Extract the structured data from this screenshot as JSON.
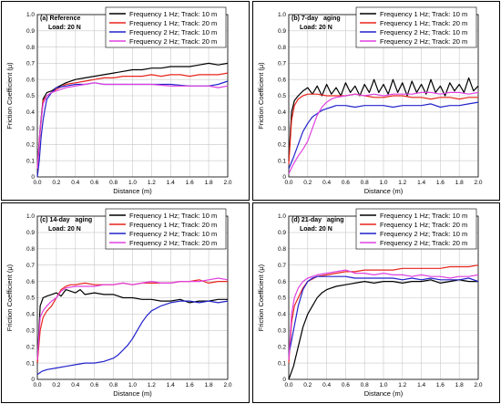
{
  "chart_data": [
    {
      "type": "line",
      "panel_label": "(a) Reference",
      "load_label": "Load: 20 N",
      "xlabel": "Distance (m)",
      "ylabel": "Friction Coefficient (μ)",
      "xlim": [
        0,
        2.0
      ],
      "ylim": [
        0,
        1.0
      ],
      "xticks": [
        "0.0",
        "0.2",
        "0.4",
        "0.6",
        "0.8",
        "1.0",
        "1.2",
        "1.4",
        "1.6",
        "1.8",
        "2.0"
      ],
      "yticks": [
        "0",
        "0.1",
        "0.2",
        "0.3",
        "0.4",
        "0.5",
        "0.6",
        "0.7",
        "0.8",
        "0.9",
        "1.0"
      ],
      "grid": true,
      "legend_position": "top-right",
      "series": [
        {
          "name": "Frequency 1 Hz; Track: 10 m",
          "color": "#000000",
          "x": [
            0,
            0.03,
            0.06,
            0.1,
            0.15,
            0.2,
            0.3,
            0.4,
            0.5,
            0.6,
            0.7,
            0.8,
            0.9,
            1.0,
            1.1,
            1.2,
            1.3,
            1.4,
            1.5,
            1.6,
            1.7,
            1.8,
            1.9,
            2.0
          ],
          "y": [
            0.05,
            0.3,
            0.48,
            0.52,
            0.53,
            0.55,
            0.58,
            0.6,
            0.61,
            0.62,
            0.63,
            0.64,
            0.65,
            0.66,
            0.66,
            0.67,
            0.67,
            0.68,
            0.68,
            0.68,
            0.69,
            0.7,
            0.69,
            0.7
          ]
        },
        {
          "name": "Frequency 1 Hz; Track: 20 m",
          "color": "#e8251c",
          "x": [
            0,
            0.03,
            0.06,
            0.1,
            0.15,
            0.2,
            0.3,
            0.4,
            0.5,
            0.6,
            0.7,
            0.8,
            0.9,
            1.0,
            1.1,
            1.2,
            1.3,
            1.4,
            1.5,
            1.6,
            1.7,
            1.8,
            1.9,
            2.0
          ],
          "y": [
            0.05,
            0.28,
            0.47,
            0.5,
            0.52,
            0.54,
            0.57,
            0.58,
            0.59,
            0.6,
            0.61,
            0.61,
            0.62,
            0.62,
            0.62,
            0.63,
            0.62,
            0.63,
            0.63,
            0.62,
            0.63,
            0.63,
            0.63,
            0.64
          ]
        },
        {
          "name": "Frequency 2 Hz; Track: 10 m",
          "color": "#2222cc",
          "x": [
            0,
            0.02,
            0.04,
            0.06,
            0.08,
            0.1,
            0.15,
            0.2,
            0.3,
            0.4,
            0.5,
            0.6,
            0.7,
            0.8,
            0.9,
            1.0,
            1.2,
            1.4,
            1.6,
            1.8,
            1.9,
            2.0
          ],
          "y": [
            0.0,
            0.1,
            0.25,
            0.35,
            0.42,
            0.48,
            0.52,
            0.55,
            0.56,
            0.57,
            0.57,
            0.58,
            0.57,
            0.57,
            0.57,
            0.57,
            0.57,
            0.57,
            0.56,
            0.56,
            0.57,
            0.59
          ]
        },
        {
          "name": "Frequency 2 Hz; Track: 20 m",
          "color": "#e040e0",
          "x": [
            0,
            0.03,
            0.06,
            0.1,
            0.15,
            0.2,
            0.3,
            0.4,
            0.5,
            0.6,
            0.7,
            0.8,
            0.9,
            1.0,
            1.2,
            1.4,
            1.6,
            1.8,
            1.9,
            2.0
          ],
          "y": [
            0.05,
            0.3,
            0.45,
            0.5,
            0.52,
            0.53,
            0.55,
            0.56,
            0.57,
            0.58,
            0.57,
            0.57,
            0.57,
            0.57,
            0.57,
            0.56,
            0.56,
            0.56,
            0.55,
            0.56
          ]
        }
      ]
    },
    {
      "type": "line",
      "panel_label": "(b) 7-day   aging",
      "load_label": "Load: 20 N",
      "xlabel": "Distance (m)",
      "ylabel": "Friction Coefficient (μ)",
      "xlim": [
        0,
        2.0
      ],
      "ylim": [
        0,
        1.0
      ],
      "xticks": [
        "0.0",
        "0.2",
        "0.4",
        "0.6",
        "0.8",
        "1.0",
        "1.2",
        "1.4",
        "1.6",
        "1.8",
        "2.0"
      ],
      "yticks": [
        "0",
        "0.1",
        "0.2",
        "0.3",
        "0.4",
        "0.5",
        "0.6",
        "0.7",
        "0.8",
        "0.9",
        "1.0"
      ],
      "grid": true,
      "legend_position": "top-right",
      "series": [
        {
          "name": "Frequency 1 Hz; Track: 10 m",
          "color": "#000000",
          "x": [
            0,
            0.03,
            0.06,
            0.1,
            0.15,
            0.2,
            0.25,
            0.3,
            0.35,
            0.4,
            0.45,
            0.5,
            0.55,
            0.6,
            0.65,
            0.7,
            0.75,
            0.8,
            0.85,
            0.9,
            0.95,
            1.0,
            1.05,
            1.1,
            1.15,
            1.2,
            1.25,
            1.3,
            1.35,
            1.4,
            1.45,
            1.5,
            1.55,
            1.6,
            1.65,
            1.7,
            1.75,
            1.8,
            1.85,
            1.9,
            1.95,
            2.0
          ],
          "y": [
            0.1,
            0.4,
            0.47,
            0.5,
            0.53,
            0.55,
            0.51,
            0.56,
            0.5,
            0.57,
            0.51,
            0.55,
            0.5,
            0.58,
            0.52,
            0.56,
            0.5,
            0.57,
            0.52,
            0.6,
            0.52,
            0.57,
            0.51,
            0.6,
            0.52,
            0.58,
            0.5,
            0.59,
            0.52,
            0.57,
            0.51,
            0.6,
            0.52,
            0.56,
            0.5,
            0.58,
            0.53,
            0.57,
            0.52,
            0.61,
            0.53,
            0.56
          ]
        },
        {
          "name": "Frequency 1 Hz; Track: 20 m",
          "color": "#e8251c",
          "x": [
            0,
            0.03,
            0.06,
            0.1,
            0.15,
            0.2,
            0.3,
            0.4,
            0.5,
            0.6,
            0.7,
            0.8,
            0.9,
            1.0,
            1.1,
            1.2,
            1.3,
            1.4,
            1.5,
            1.6,
            1.7,
            1.8,
            1.9,
            2.0
          ],
          "y": [
            0.08,
            0.35,
            0.44,
            0.48,
            0.5,
            0.51,
            0.51,
            0.5,
            0.5,
            0.5,
            0.51,
            0.5,
            0.49,
            0.49,
            0.5,
            0.5,
            0.49,
            0.49,
            0.48,
            0.49,
            0.49,
            0.48,
            0.49,
            0.49
          ]
        },
        {
          "name": "Frequency 2 Hz; Track: 10 m",
          "color": "#2222cc",
          "x": [
            0,
            0.05,
            0.1,
            0.15,
            0.2,
            0.25,
            0.3,
            0.35,
            0.4,
            0.45,
            0.5,
            0.6,
            0.7,
            0.8,
            0.9,
            1.0,
            1.1,
            1.2,
            1.3,
            1.4,
            1.5,
            1.6,
            1.7,
            1.8,
            1.9,
            2.0
          ],
          "y": [
            0.05,
            0.12,
            0.2,
            0.28,
            0.33,
            0.37,
            0.39,
            0.41,
            0.42,
            0.43,
            0.44,
            0.44,
            0.43,
            0.44,
            0.44,
            0.44,
            0.43,
            0.44,
            0.44,
            0.44,
            0.45,
            0.43,
            0.44,
            0.44,
            0.45,
            0.46
          ]
        },
        {
          "name": "Frequency 2 Hz; Track: 20 m",
          "color": "#e040e0",
          "x": [
            0,
            0.05,
            0.1,
            0.15,
            0.2,
            0.25,
            0.3,
            0.35,
            0.4,
            0.45,
            0.5,
            0.6,
            0.7,
            0.8,
            0.9,
            1.0,
            1.1,
            1.2,
            1.3,
            1.4,
            1.5,
            1.6,
            1.7,
            1.8,
            1.9,
            2.0
          ],
          "y": [
            0.02,
            0.08,
            0.13,
            0.17,
            0.22,
            0.3,
            0.38,
            0.43,
            0.46,
            0.48,
            0.49,
            0.5,
            0.51,
            0.5,
            0.51,
            0.5,
            0.51,
            0.51,
            0.51,
            0.52,
            0.52,
            0.51,
            0.52,
            0.52,
            0.51,
            0.52
          ]
        }
      ]
    },
    {
      "type": "line",
      "panel_label": "(c) 14-day   aging",
      "load_label": "Load: 20 N",
      "xlabel": "Distance (m)",
      "ylabel": "Friction Coefficient (μ)",
      "xlim": [
        0,
        2.0
      ],
      "ylim": [
        0,
        1.0
      ],
      "xticks": [
        "0.0",
        "0.2",
        "0.4",
        "0.6",
        "0.8",
        "1.0",
        "1.2",
        "1.4",
        "1.6",
        "1.8",
        "2.0"
      ],
      "yticks": [
        "0",
        "0.1",
        "0.2",
        "0.3",
        "0.4",
        "0.5",
        "0.6",
        "0.7",
        "0.8",
        "0.9",
        "1.0"
      ],
      "grid": true,
      "legend_position": "top-right",
      "series": [
        {
          "name": "Frequency 1 Hz; Track: 10 m",
          "color": "#000000",
          "x": [
            0,
            0.03,
            0.06,
            0.1,
            0.15,
            0.2,
            0.25,
            0.3,
            0.35,
            0.4,
            0.45,
            0.5,
            0.6,
            0.7,
            0.8,
            0.9,
            1.0,
            1.1,
            1.2,
            1.3,
            1.4,
            1.5,
            1.6,
            1.7,
            1.8,
            1.9,
            2.0
          ],
          "y": [
            0.1,
            0.45,
            0.5,
            0.51,
            0.52,
            0.53,
            0.51,
            0.55,
            0.54,
            0.53,
            0.55,
            0.52,
            0.53,
            0.52,
            0.52,
            0.5,
            0.5,
            0.49,
            0.49,
            0.48,
            0.48,
            0.49,
            0.47,
            0.48,
            0.48,
            0.49,
            0.49
          ]
        },
        {
          "name": "Frequency 1 Hz; Track: 20 m",
          "color": "#e8251c",
          "x": [
            0,
            0.03,
            0.06,
            0.1,
            0.15,
            0.2,
            0.25,
            0.3,
            0.35,
            0.4,
            0.5,
            0.6,
            0.7,
            0.8,
            0.9,
            1.0,
            1.1,
            1.2,
            1.3,
            1.4,
            1.5,
            1.6,
            1.7,
            1.8,
            1.9,
            2.0
          ],
          "y": [
            0.1,
            0.3,
            0.38,
            0.42,
            0.45,
            0.5,
            0.55,
            0.57,
            0.58,
            0.58,
            0.59,
            0.58,
            0.58,
            0.58,
            0.59,
            0.58,
            0.59,
            0.59,
            0.59,
            0.59,
            0.6,
            0.6,
            0.61,
            0.59,
            0.6,
            0.6
          ]
        },
        {
          "name": "Frequency 2 Hz; Track: 10 m",
          "color": "#2222cc",
          "x": [
            0,
            0.05,
            0.1,
            0.2,
            0.3,
            0.4,
            0.5,
            0.6,
            0.7,
            0.8,
            0.85,
            0.9,
            0.95,
            1.0,
            1.05,
            1.1,
            1.15,
            1.2,
            1.3,
            1.4,
            1.5,
            1.6,
            1.7,
            1.8,
            1.9,
            2.0
          ],
          "y": [
            0.03,
            0.05,
            0.06,
            0.07,
            0.08,
            0.09,
            0.1,
            0.1,
            0.11,
            0.13,
            0.15,
            0.18,
            0.21,
            0.25,
            0.3,
            0.35,
            0.39,
            0.42,
            0.45,
            0.47,
            0.48,
            0.48,
            0.47,
            0.48,
            0.47,
            0.48
          ]
        },
        {
          "name": "Frequency 2 Hz; Track: 20 m",
          "color": "#e040e0",
          "x": [
            0,
            0.03,
            0.06,
            0.1,
            0.15,
            0.2,
            0.25,
            0.3,
            0.4,
            0.5,
            0.6,
            0.7,
            0.8,
            0.9,
            1.0,
            1.1,
            1.2,
            1.3,
            1.4,
            1.5,
            1.6,
            1.7,
            1.8,
            1.9,
            2.0
          ],
          "y": [
            0.12,
            0.38,
            0.42,
            0.45,
            0.48,
            0.5,
            0.54,
            0.56,
            0.57,
            0.57,
            0.57,
            0.58,
            0.58,
            0.59,
            0.58,
            0.59,
            0.6,
            0.59,
            0.59,
            0.6,
            0.6,
            0.6,
            0.61,
            0.62,
            0.61
          ]
        }
      ]
    },
    {
      "type": "line",
      "panel_label": "(d) 21-day   aging",
      "load_label": "Load: 20 N",
      "xlabel": "Distance (m)",
      "ylabel": "Friction Coefficient (μ)",
      "xlim": [
        0,
        2.0
      ],
      "ylim": [
        0,
        1.0
      ],
      "xticks": [
        "0.0",
        "0.2",
        "0.4",
        "0.6",
        "0.8",
        "1.0",
        "1.2",
        "1.4",
        "1.6",
        "1.8",
        "2.0"
      ],
      "yticks": [
        "0",
        "0.1",
        "0.2",
        "0.3",
        "0.4",
        "0.5",
        "0.6",
        "0.7",
        "0.8",
        "0.9",
        "1.0"
      ],
      "grid": true,
      "legend_position": "top-right",
      "series": [
        {
          "name": "Frequency 1 Hz; Track: 10 m",
          "color": "#000000",
          "x": [
            0,
            0.05,
            0.1,
            0.15,
            0.2,
            0.25,
            0.3,
            0.35,
            0.4,
            0.5,
            0.6,
            0.7,
            0.8,
            0.9,
            1.0,
            1.1,
            1.2,
            1.3,
            1.4,
            1.5,
            1.6,
            1.7,
            1.8,
            1.9,
            2.0
          ],
          "y": [
            0.0,
            0.08,
            0.2,
            0.32,
            0.4,
            0.45,
            0.5,
            0.53,
            0.55,
            0.57,
            0.58,
            0.59,
            0.6,
            0.59,
            0.6,
            0.6,
            0.59,
            0.6,
            0.6,
            0.61,
            0.59,
            0.6,
            0.61,
            0.6,
            0.6
          ]
        },
        {
          "name": "Frequency 1 Hz; Track: 20 m",
          "color": "#e8251c",
          "x": [
            0,
            0.03,
            0.06,
            0.1,
            0.15,
            0.2,
            0.3,
            0.4,
            0.5,
            0.6,
            0.7,
            0.8,
            0.9,
            1.0,
            1.1,
            1.2,
            1.3,
            1.4,
            1.5,
            1.6,
            1.7,
            1.8,
            1.9,
            2.0
          ],
          "y": [
            0.1,
            0.35,
            0.45,
            0.5,
            0.56,
            0.6,
            0.63,
            0.64,
            0.65,
            0.66,
            0.66,
            0.67,
            0.67,
            0.67,
            0.67,
            0.68,
            0.68,
            0.68,
            0.68,
            0.68,
            0.69,
            0.69,
            0.69,
            0.7
          ]
        },
        {
          "name": "Frequency 2 Hz; Track: 10 m",
          "color": "#2222cc",
          "x": [
            0,
            0.05,
            0.1,
            0.15,
            0.2,
            0.25,
            0.3,
            0.4,
            0.5,
            0.6,
            0.7,
            0.8,
            0.9,
            1.0,
            1.1,
            1.2,
            1.3,
            1.4,
            1.5,
            1.6,
            1.7,
            1.8,
            1.9,
            2.0
          ],
          "y": [
            0.15,
            0.3,
            0.45,
            0.55,
            0.6,
            0.62,
            0.63,
            0.63,
            0.63,
            0.63,
            0.62,
            0.62,
            0.62,
            0.62,
            0.62,
            0.61,
            0.62,
            0.61,
            0.62,
            0.61,
            0.61,
            0.61,
            0.62,
            0.6
          ]
        },
        {
          "name": "Frequency 2 Hz; Track: 20 m",
          "color": "#e040e0",
          "x": [
            0,
            0.03,
            0.06,
            0.1,
            0.15,
            0.2,
            0.3,
            0.4,
            0.5,
            0.6,
            0.7,
            0.8,
            0.9,
            1.0,
            1.1,
            1.2,
            1.3,
            1.4,
            1.5,
            1.6,
            1.7,
            1.8,
            1.9,
            2.0
          ],
          "y": [
            0.12,
            0.4,
            0.5,
            0.56,
            0.6,
            0.62,
            0.64,
            0.65,
            0.66,
            0.67,
            0.65,
            0.65,
            0.64,
            0.65,
            0.64,
            0.64,
            0.63,
            0.64,
            0.63,
            0.63,
            0.62,
            0.63,
            0.63,
            0.64
          ]
        }
      ]
    }
  ]
}
